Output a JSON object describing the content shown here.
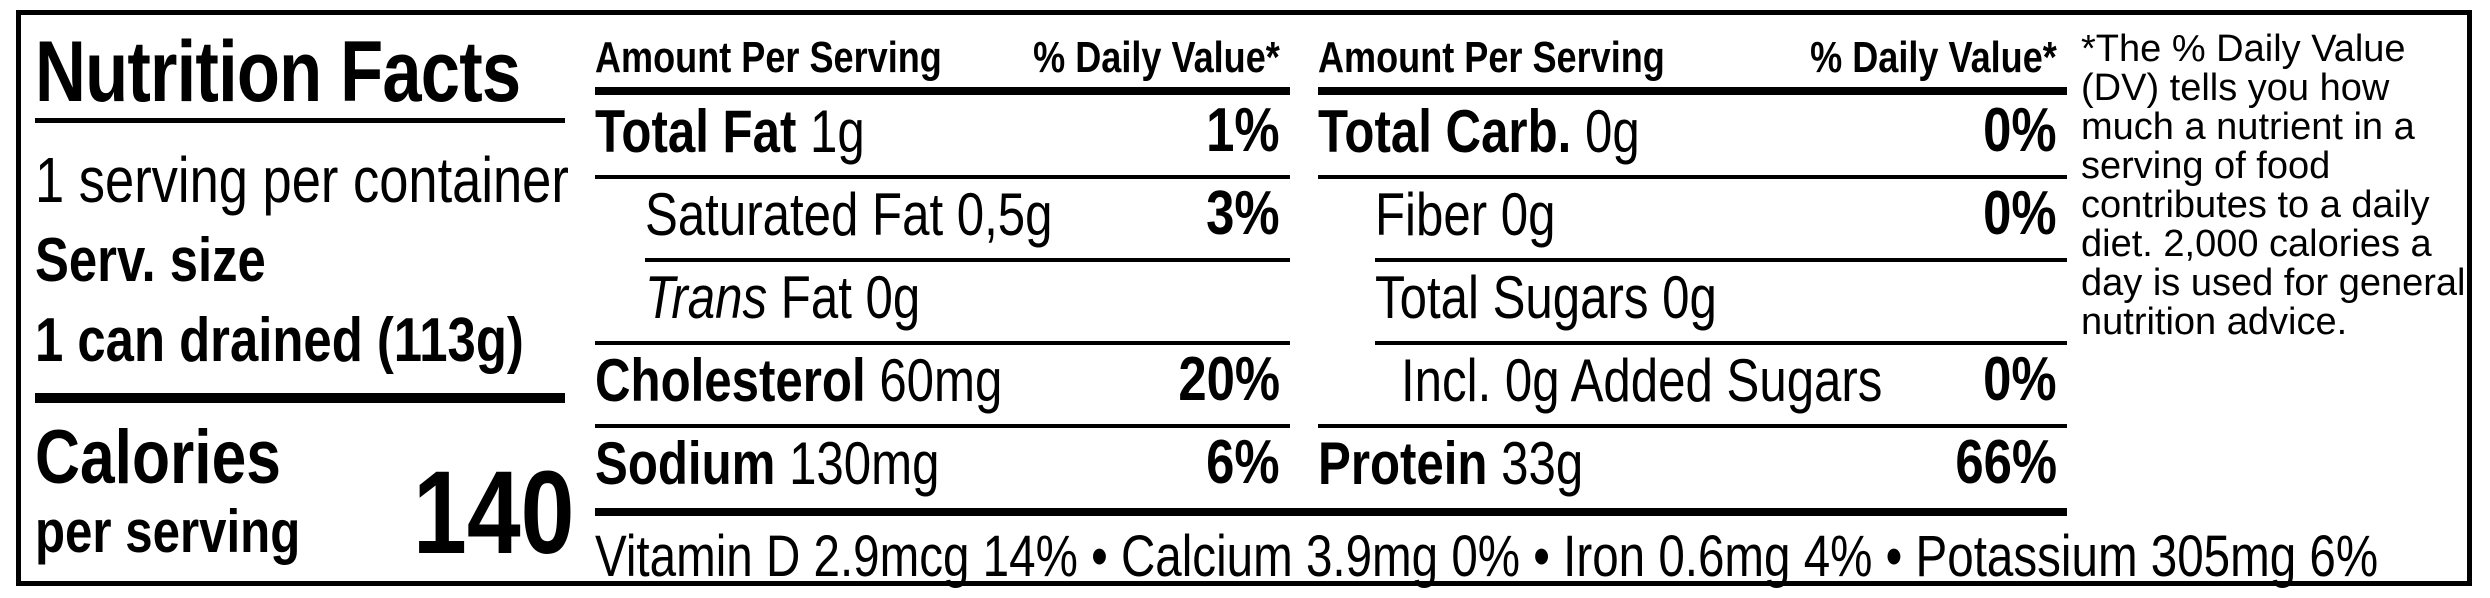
{
  "title": "Nutrition Facts",
  "servings_per_container": "1 serving per container",
  "serving_size_label": "Serv. size",
  "serving_size_value": "1 can drained (113g)",
  "calories_label": "Calories",
  "calories_sub": "per serving",
  "calories_value": "140",
  "left_table": {
    "header_amount": "Amount Per Serving",
    "header_dv": "% Daily Value*",
    "rows": [
      {
        "label": "Total Fat",
        "amount": "1g",
        "dv": "1%"
      },
      {
        "label": "Saturated Fat",
        "amount": "0,5g",
        "dv": "3%"
      },
      {
        "label_italic": "Trans",
        "label": "Fat",
        "amount": "0g",
        "dv": ""
      },
      {
        "label": "Cholesterol",
        "amount": "60mg",
        "dv": "20%"
      },
      {
        "label": "Sodium",
        "amount": "130mg",
        "dv": "6%"
      }
    ]
  },
  "right_table": {
    "header_amount": "Amount Per Serving",
    "header_dv": "% Daily Value*",
    "rows": [
      {
        "label": "Total Carb.",
        "amount": "0g",
        "dv": "0%"
      },
      {
        "label": "Fiber",
        "amount": "0g",
        "dv": "0%"
      },
      {
        "label": "Total Sugars",
        "amount": "0g",
        "dv": ""
      },
      {
        "label": "Incl. 0g Added Sugars",
        "amount": "",
        "dv": "0%"
      },
      {
        "label": "Protein",
        "amount": "33g",
        "dv": "66%"
      }
    ]
  },
  "vitamins_line": "Vitamin D 2.9mcg 14% • Calcium 3.9mg  0% • Iron 0.6mg 4% • Potassium 305mg 6%",
  "footnote": "*The % Daily Value (DV) tells you how much a nutrient in a serving of food contributes to a daily diet. 2,000 calories a day is used for general nutrition advice."
}
